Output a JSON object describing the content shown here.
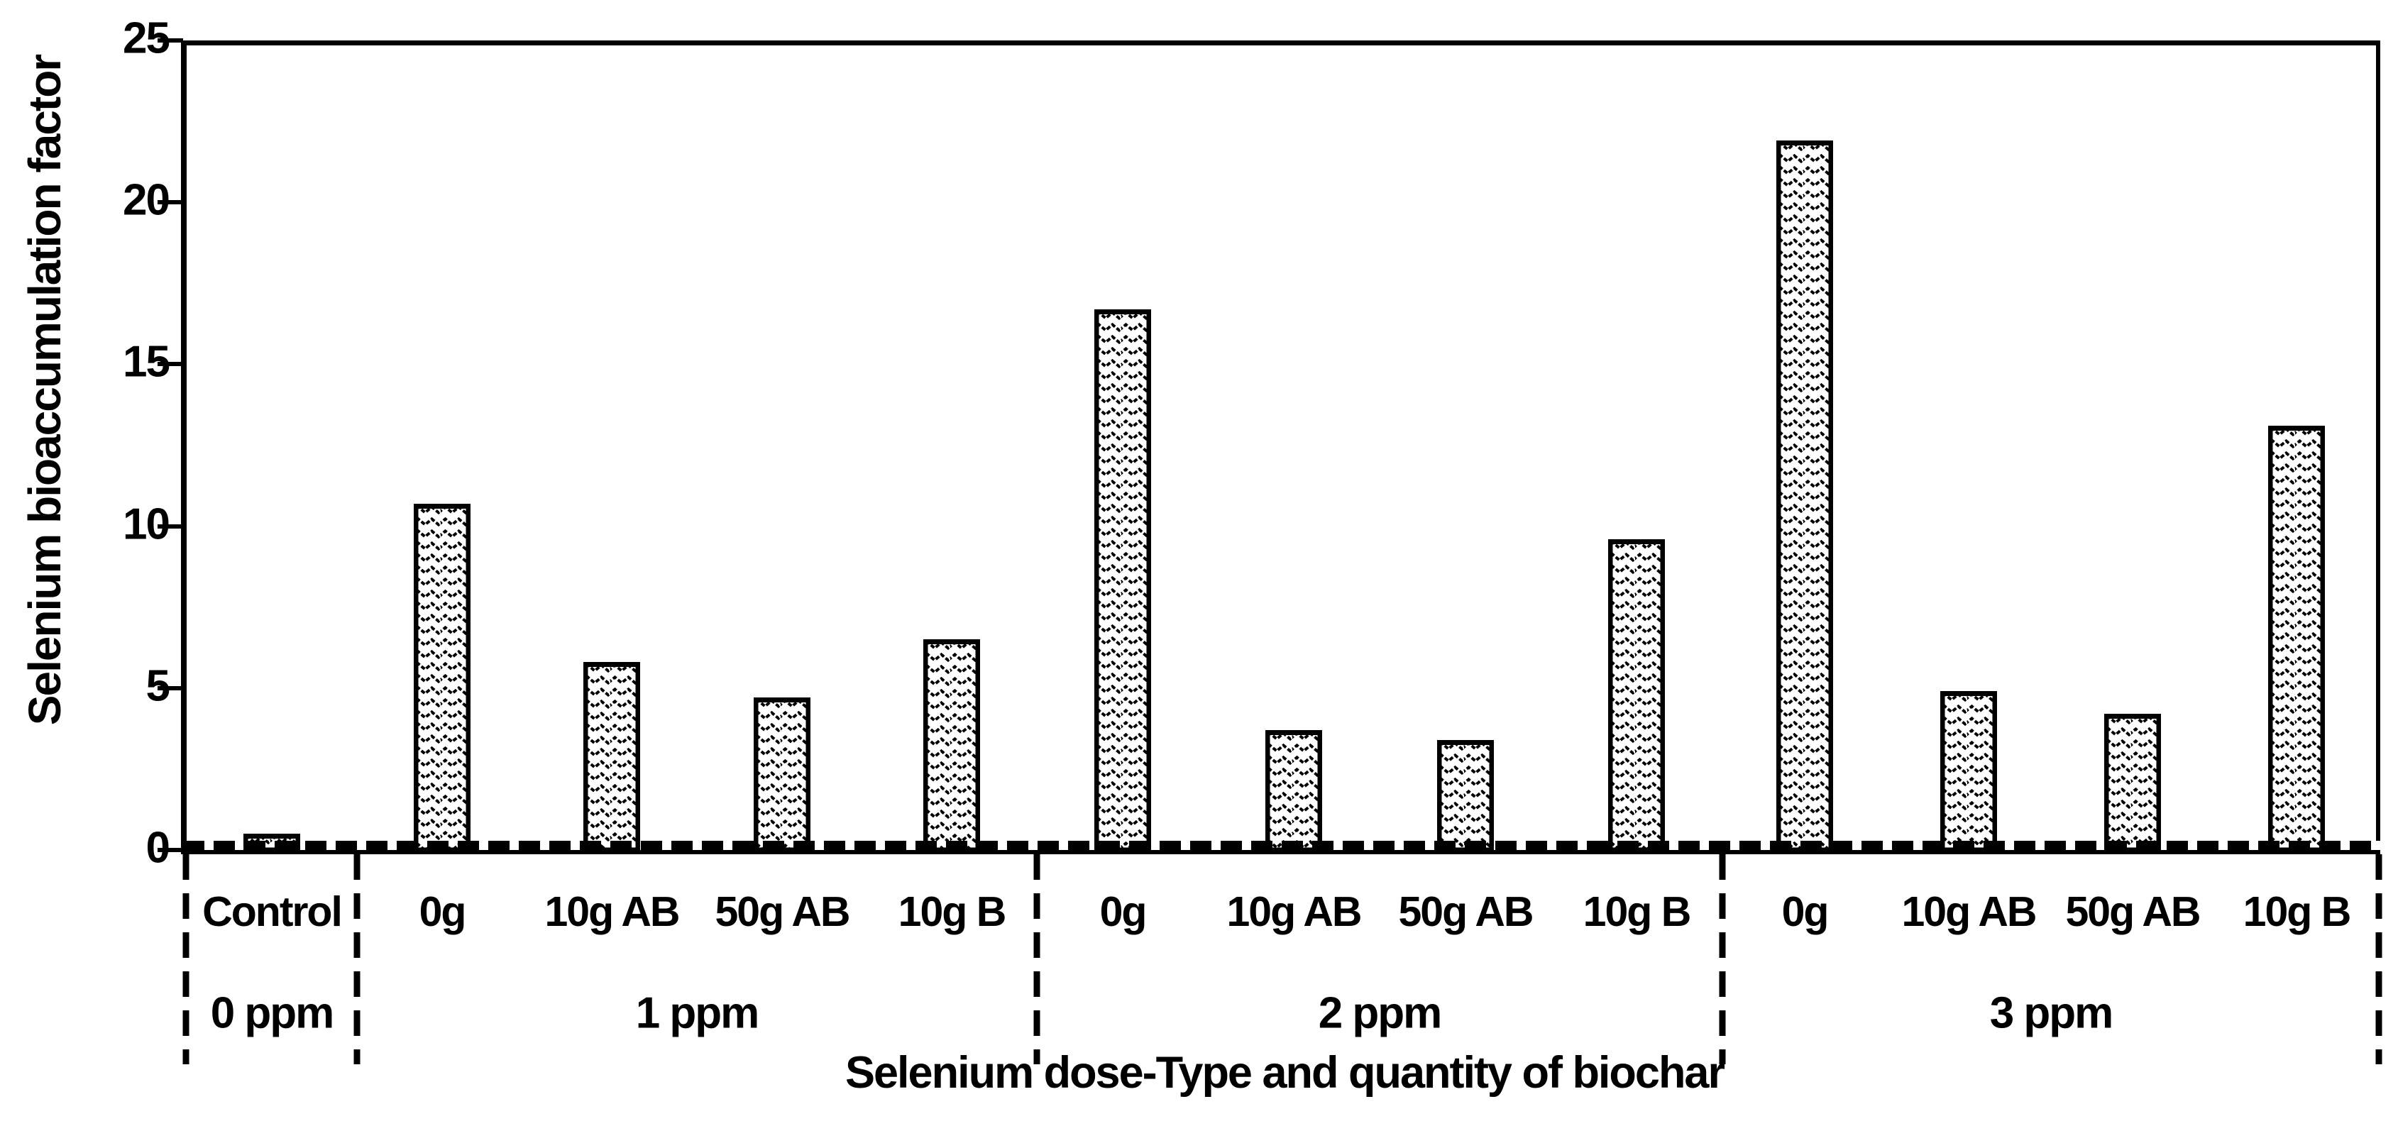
{
  "figure": {
    "background": "#ffffff",
    "ink_color": "#000000",
    "bar_pattern": "zigzag-wave-hatch"
  },
  "chart_data": {
    "type": "bar",
    "title": "",
    "ylabel": "Selenium bioaccumulation factor",
    "xlabel": "Selenium dose-Type and quantity of biochar",
    "ylim": [
      0,
      25
    ],
    "yticks": [
      "0",
      "5",
      "10",
      "15",
      "20",
      "25"
    ],
    "ytick_values": [
      0,
      5,
      10,
      15,
      20,
      25
    ],
    "grid": false,
    "legend": "none",
    "bar_fill": "black-and-white wave pattern hatch",
    "groups": [
      {
        "label": "0 ppm",
        "categories": [
          "Control"
        ],
        "values": [
          0.5
        ]
      },
      {
        "label": "1 ppm",
        "categories": [
          "0g",
          "10g AB",
          "50g AB",
          "10g B"
        ],
        "values": [
          10.7,
          5.8,
          4.7,
          6.5
        ]
      },
      {
        "label": "2 ppm",
        "categories": [
          "0g",
          "10g AB",
          "50g AB",
          "10g B"
        ],
        "values": [
          16.7,
          3.7,
          3.4,
          9.6
        ]
      },
      {
        "label": "3 ppm",
        "categories": [
          "0g",
          "10g AB",
          "50g AB",
          "10g B"
        ],
        "values": [
          21.9,
          4.9,
          4.2,
          13.1
        ]
      }
    ]
  }
}
